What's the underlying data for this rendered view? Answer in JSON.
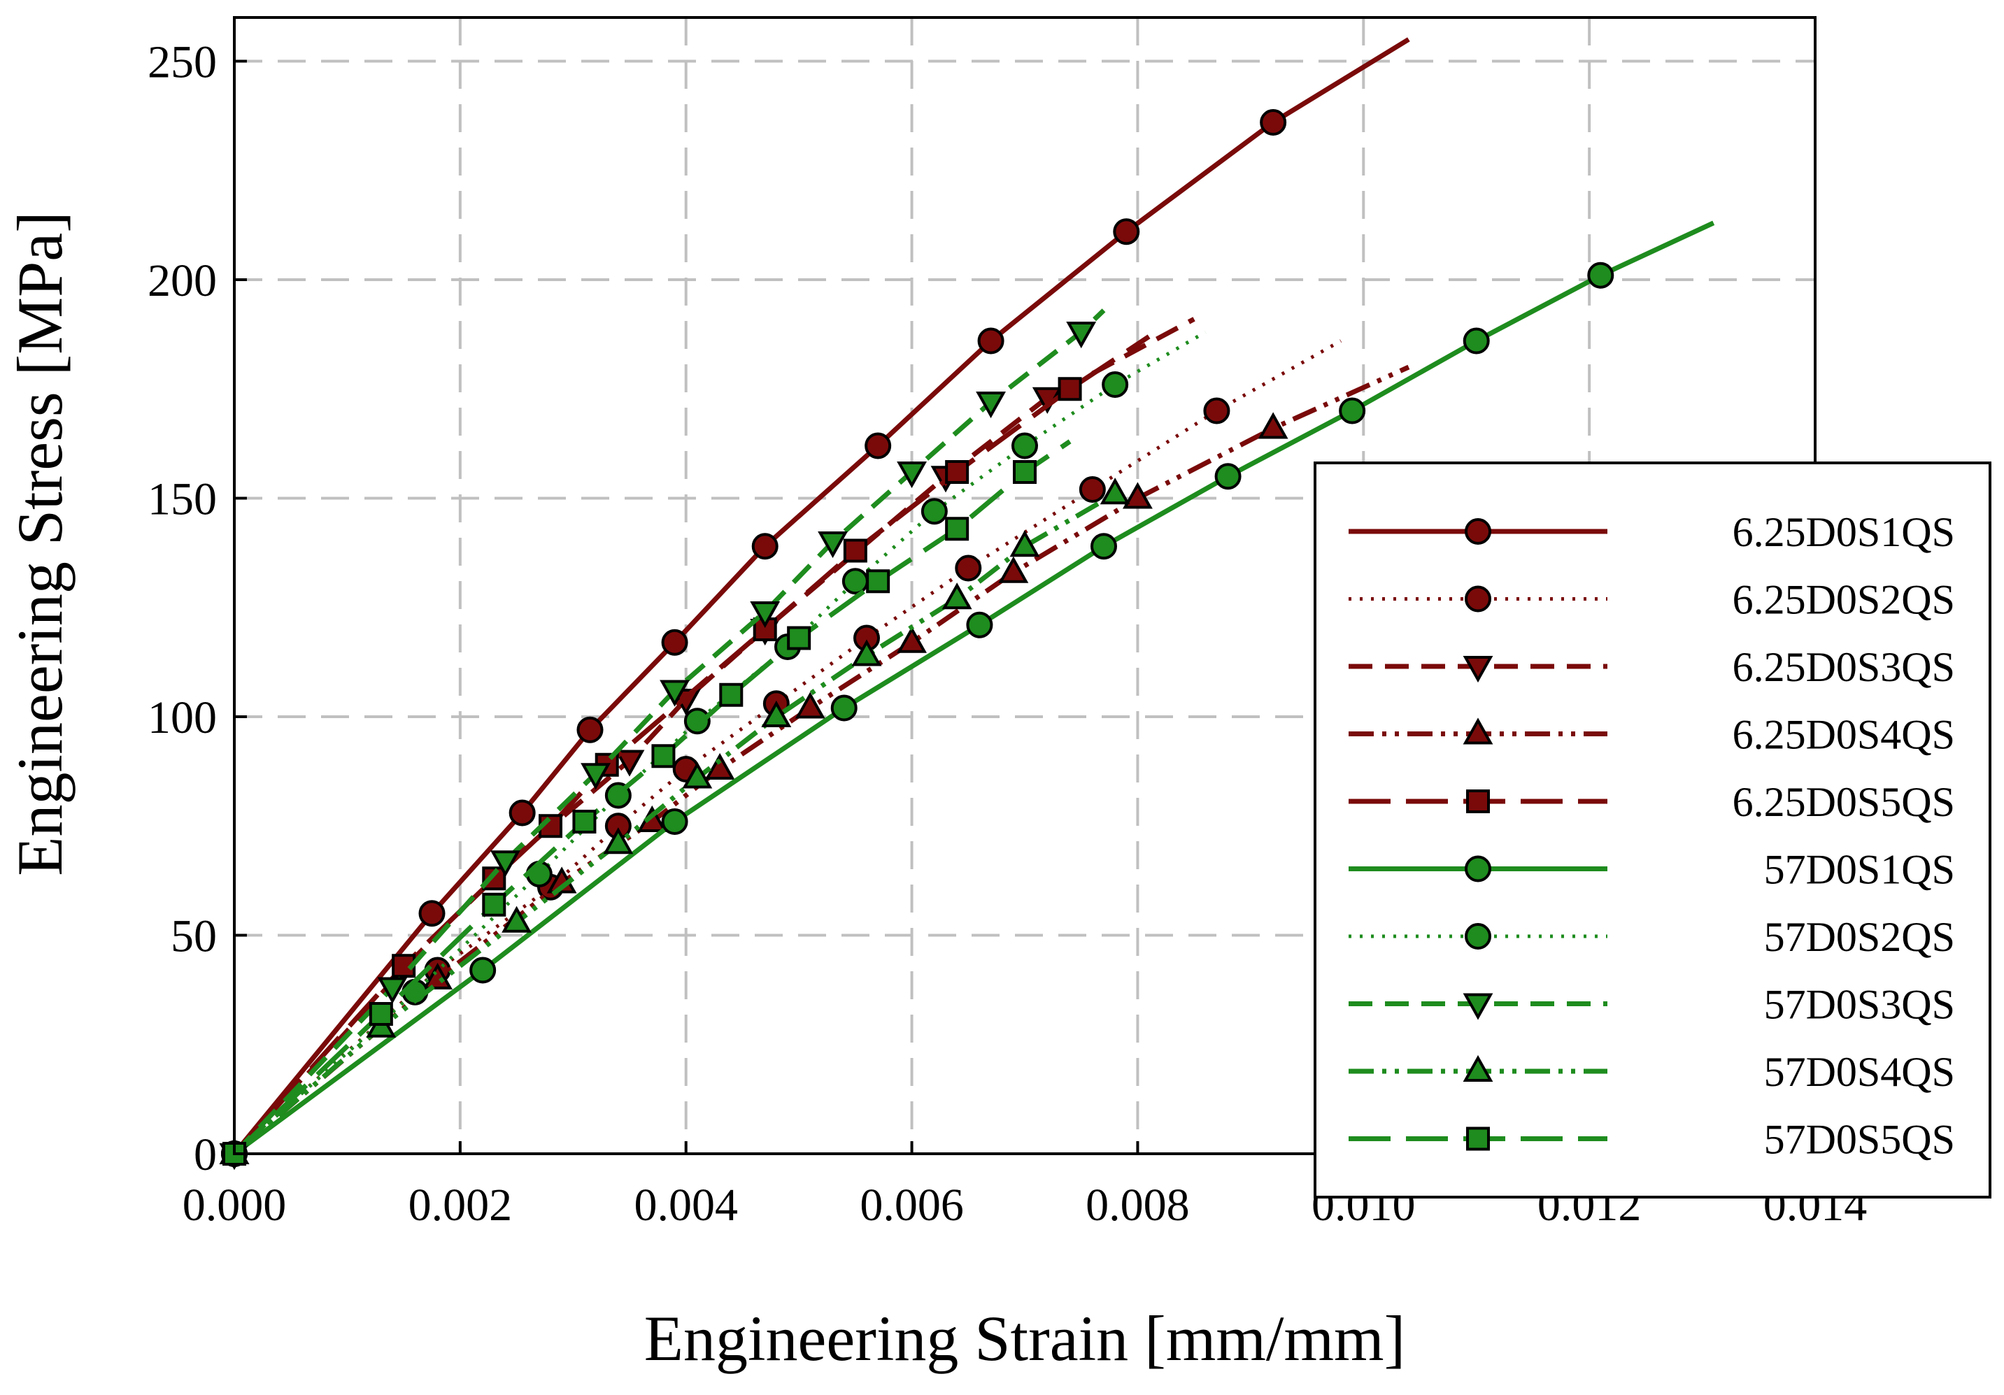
{
  "chart_data": {
    "type": "line",
    "title": "",
    "xlabel": "Engineering Strain [mm/mm]",
    "ylabel": "Engineering Stress [MPa]",
    "xlim": [
      0,
      0.014
    ],
    "ylim": [
      0,
      260
    ],
    "xticks": [
      0,
      0.002,
      0.004,
      0.006,
      0.008,
      0.01,
      0.012,
      0.014
    ],
    "xtick_labels": [
      "0.000",
      "0.002",
      "0.004",
      "0.006",
      "0.008",
      "0.010",
      "0.012",
      "0.014"
    ],
    "yticks": [
      0,
      50,
      100,
      150,
      200,
      250
    ],
    "ytick_labels": [
      "0",
      "50",
      "100",
      "150",
      "200",
      "250"
    ],
    "grid": true,
    "legend_position": "right",
    "colors": {
      "red": "#7a0a0a",
      "green": "#1e8c1e",
      "grid": "#c0c0c0"
    },
    "series": [
      {
        "name": "6.25D0S1QS",
        "color": "#7a0a0a",
        "dash": "solid",
        "marker": "circle",
        "x": [
          0,
          0.00175,
          0.00255,
          0.00315,
          0.0039,
          0.0047,
          0.0057,
          0.0067,
          0.0079,
          0.0092,
          0.0104
        ],
        "y": [
          0,
          55,
          78,
          97,
          117,
          139,
          162,
          186,
          211,
          236,
          255
        ],
        "marker_points": [
          [
            0,
            0
          ],
          [
            0.00175,
            55
          ],
          [
            0.00255,
            78
          ],
          [
            0.00315,
            97
          ],
          [
            0.0039,
            117
          ],
          [
            0.0047,
            139
          ],
          [
            0.0057,
            162
          ],
          [
            0.0067,
            186
          ],
          [
            0.0079,
            211
          ],
          [
            0.0092,
            236
          ]
        ]
      },
      {
        "name": "6.25D0S2QS",
        "color": "#7a0a0a",
        "dash": "dotted",
        "marker": "circle",
        "x": [
          0,
          0.0018,
          0.0028,
          0.0034,
          0.004,
          0.0048,
          0.0056,
          0.0065,
          0.0076,
          0.0087,
          0.0098
        ],
        "y": [
          0,
          42,
          61,
          75,
          88,
          103,
          118,
          134,
          152,
          170,
          186
        ],
        "marker_points": [
          [
            0,
            0
          ],
          [
            0.0018,
            42
          ],
          [
            0.0028,
            61
          ],
          [
            0.0034,
            75
          ],
          [
            0.004,
            88
          ],
          [
            0.0048,
            103
          ],
          [
            0.0056,
            118
          ],
          [
            0.0065,
            134
          ],
          [
            0.0076,
            152
          ],
          [
            0.0087,
            170
          ]
        ]
      },
      {
        "name": "6.25D0S3QS",
        "color": "#7a0a0a",
        "dash": "dashed",
        "marker": "triangle-down",
        "x": [
          0,
          0.0016,
          0.0024,
          0.0035,
          0.004,
          0.0047,
          0.0063,
          0.0072,
          0.0085
        ],
        "y": [
          0,
          45,
          66,
          90,
          104,
          120,
          155,
          173,
          191
        ],
        "marker_points": [
          [
            0,
            0
          ],
          [
            0.0035,
            90
          ],
          [
            0.004,
            104
          ],
          [
            0.0047,
            120
          ],
          [
            0.0063,
            155
          ],
          [
            0.0072,
            173
          ]
        ]
      },
      {
        "name": "6.25D0S4QS",
        "color": "#7a0a0a",
        "dash": "dash-dot-dot",
        "marker": "triangle-up",
        "x": [
          0,
          0.0018,
          0.0029,
          0.0037,
          0.0043,
          0.0051,
          0.006,
          0.0069,
          0.008,
          0.0092,
          0.0104
        ],
        "y": [
          0,
          40,
          62,
          76,
          88,
          102,
          117,
          133,
          150,
          166,
          180
        ],
        "marker_points": [
          [
            0,
            0
          ],
          [
            0.0018,
            40
          ],
          [
            0.0029,
            62
          ],
          [
            0.0037,
            76
          ],
          [
            0.0043,
            88
          ],
          [
            0.0051,
            102
          ],
          [
            0.006,
            117
          ],
          [
            0.0069,
            133
          ],
          [
            0.008,
            150
          ],
          [
            0.0092,
            166
          ]
        ]
      },
      {
        "name": "6.25D0S5QS",
        "color": "#7a0a0a",
        "dash": "long-dash",
        "marker": "square",
        "x": [
          0,
          0.0015,
          0.0023,
          0.0028,
          0.0033,
          0.0047,
          0.0055,
          0.0064,
          0.0074,
          0.0081
        ],
        "y": [
          0,
          43,
          63,
          75,
          89,
          120,
          138,
          156,
          175,
          187
        ],
        "marker_points": [
          [
            0,
            0
          ],
          [
            0.0015,
            43
          ],
          [
            0.0023,
            63
          ],
          [
            0.0028,
            75
          ],
          [
            0.0033,
            89
          ],
          [
            0.0047,
            120
          ],
          [
            0.0055,
            138
          ],
          [
            0.0064,
            156
          ],
          [
            0.0074,
            175
          ]
        ]
      },
      {
        "name": "57D0S1QS",
        "color": "#1e8c1e",
        "dash": "solid",
        "marker": "circle",
        "x": [
          0,
          0.0022,
          0.0039,
          0.0054,
          0.0066,
          0.0077,
          0.0088,
          0.0099,
          0.011,
          0.0121,
          0.0131
        ],
        "y": [
          0,
          42,
          76,
          102,
          121,
          139,
          155,
          170,
          186,
          201,
          213
        ],
        "marker_points": [
          [
            0,
            0
          ],
          [
            0.0022,
            42
          ],
          [
            0.0039,
            76
          ],
          [
            0.0054,
            102
          ],
          [
            0.0066,
            121
          ],
          [
            0.0077,
            139
          ],
          [
            0.0088,
            155
          ],
          [
            0.0099,
            170
          ],
          [
            0.011,
            186
          ],
          [
            0.0121,
            201
          ]
        ]
      },
      {
        "name": "57D0S2QS",
        "color": "#1e8c1e",
        "dash": "dotted",
        "marker": "circle",
        "x": [
          0,
          0.0016,
          0.0027,
          0.0034,
          0.0041,
          0.0049,
          0.0055,
          0.0062,
          0.007,
          0.0078,
          0.0086
        ],
        "y": [
          0,
          37,
          64,
          82,
          99,
          116,
          131,
          147,
          162,
          176,
          188
        ],
        "marker_points": [
          [
            0,
            0
          ],
          [
            0.0016,
            37
          ],
          [
            0.0027,
            64
          ],
          [
            0.0034,
            82
          ],
          [
            0.0041,
            99
          ],
          [
            0.0049,
            116
          ],
          [
            0.0055,
            131
          ],
          [
            0.0062,
            147
          ],
          [
            0.007,
            162
          ],
          [
            0.0078,
            176
          ]
        ]
      },
      {
        "name": "57D0S3QS",
        "color": "#1e8c1e",
        "dash": "dashed",
        "marker": "triangle-down",
        "x": [
          0,
          0.0014,
          0.0024,
          0.0032,
          0.0039,
          0.0047,
          0.0053,
          0.006,
          0.0067,
          0.0075,
          0.0077
        ],
        "y": [
          0,
          38,
          67,
          87,
          106,
          124,
          140,
          156,
          172,
          188,
          193
        ],
        "marker_points": [
          [
            0,
            0
          ],
          [
            0.0014,
            38
          ],
          [
            0.0024,
            67
          ],
          [
            0.0032,
            87
          ],
          [
            0.0039,
            106
          ],
          [
            0.0047,
            124
          ],
          [
            0.0053,
            140
          ],
          [
            0.006,
            156
          ],
          [
            0.0067,
            172
          ],
          [
            0.0075,
            188
          ]
        ]
      },
      {
        "name": "57D0S4QS",
        "color": "#1e8c1e",
        "dash": "dash-dot-dot",
        "marker": "triangle-up",
        "x": [
          0,
          0.0013,
          0.0025,
          0.0034,
          0.0041,
          0.0048,
          0.0056,
          0.0064,
          0.007,
          0.0078,
          0.0079
        ],
        "y": [
          0,
          29,
          53,
          71,
          86,
          100,
          114,
          127,
          139,
          151,
          152
        ],
        "marker_points": [
          [
            0,
            0
          ],
          [
            0.0013,
            29
          ],
          [
            0.0025,
            53
          ],
          [
            0.0034,
            71
          ],
          [
            0.0041,
            86
          ],
          [
            0.0048,
            100
          ],
          [
            0.0056,
            114
          ],
          [
            0.0064,
            127
          ],
          [
            0.007,
            139
          ],
          [
            0.0078,
            151
          ]
        ]
      },
      {
        "name": "57D0S5QS",
        "color": "#1e8c1e",
        "dash": "long-dash",
        "marker": "square",
        "x": [
          0,
          0.0013,
          0.0023,
          0.0031,
          0.0038,
          0.0044,
          0.005,
          0.0057,
          0.0064,
          0.007,
          0.0074
        ],
        "y": [
          0,
          32,
          57,
          76,
          91,
          105,
          118,
          131,
          143,
          156,
          163
        ],
        "marker_points": [
          [
            0,
            0
          ],
          [
            0.0013,
            32
          ],
          [
            0.0023,
            57
          ],
          [
            0.0031,
            76
          ],
          [
            0.0038,
            91
          ],
          [
            0.0044,
            105
          ],
          [
            0.005,
            118
          ],
          [
            0.0057,
            131
          ],
          [
            0.0064,
            143
          ],
          [
            0.007,
            156
          ]
        ]
      }
    ]
  }
}
